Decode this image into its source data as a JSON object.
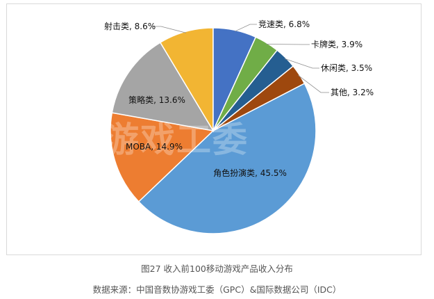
{
  "figure_caption": "图27 收入前100移动游戏产品收入分布",
  "source_note": "数据来源：中国音数协游戏工委（GPC）&国际数据公司（IDC）",
  "watermark_text": "游戏工委",
  "chart_data": {
    "type": "pie",
    "title": "",
    "unit": "%",
    "slices": [
      {
        "label": "角色扮演类",
        "value": 45.5,
        "display": "角色扮演类, 45.5%",
        "color": "#5b9bd5"
      },
      {
        "label": "MOBA",
        "value": 14.9,
        "display": "MOBA, 14.9%",
        "color": "#ed7d31"
      },
      {
        "label": "策略类",
        "value": 13.6,
        "display": "策略类, 13.6%",
        "color": "#a5a5a5"
      },
      {
        "label": "射击类",
        "value": 8.6,
        "display": "射击类, 8.6%",
        "color": "#f2b533"
      },
      {
        "label": "竞速类",
        "value": 6.8,
        "display": "竞速类, 6.8%",
        "color": "#4472c4"
      },
      {
        "label": "卡牌类",
        "value": 3.9,
        "display": "卡牌类, 3.9%",
        "color": "#70ad47"
      },
      {
        "label": "休闲类",
        "value": 3.5,
        "display": "休闲类, 3.5%",
        "color": "#255e91"
      },
      {
        "label": "其他",
        "value": 3.2,
        "display": "其他, 3.2%",
        "color": "#9e480e"
      }
    ]
  }
}
